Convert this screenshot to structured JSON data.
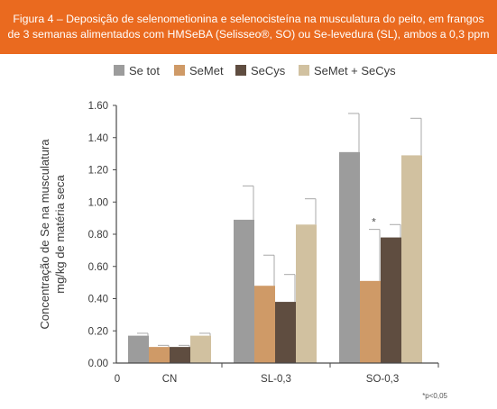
{
  "header": {
    "line1": "Figura 4 – Deposição de selenometionina e selenocisteína na musculatura do peito, em frangos",
    "line2": "de 3 semanas alimentados com HMSeBA (Selisseo®, SO) ou Se-levedura (SL), ambos a 0,3 ppm",
    "bg_color": "#ea6a1f"
  },
  "chart_data": {
    "type": "bar",
    "categories": [
      "CN",
      "SL-0,3",
      "SO-0,3"
    ],
    "series": [
      {
        "name": "Se tot",
        "color": "#9c9c9c",
        "values": [
          0.17,
          0.89,
          1.31
        ],
        "errors": [
          0.015,
          0.21,
          0.24
        ]
      },
      {
        "name": "SeMet",
        "color": "#cf9a67",
        "values": [
          0.1,
          0.48,
          0.51
        ],
        "errors": [
          0.01,
          0.19,
          0.32
        ]
      },
      {
        "name": "SeCys",
        "color": "#5f4d40",
        "values": [
          0.1,
          0.38,
          0.78
        ],
        "errors": [
          0.01,
          0.17,
          0.08
        ]
      },
      {
        "name": "SeMet + SeCys",
        "color": "#d1c1a0",
        "values": [
          0.17,
          0.86,
          1.29
        ],
        "errors": [
          0.015,
          0.16,
          0.23
        ]
      }
    ],
    "ylabel_line1": "Concentração de Se na musculatura",
    "ylabel_line2": "mg/kg de matéria seca",
    "ylim": [
      0,
      1.6
    ],
    "yticks": [
      "0.00",
      "0.20",
      "0.40",
      "0.60",
      "0.80",
      "1.00",
      "1.20",
      "1.40",
      "1.60"
    ],
    "x_origin_label": "0",
    "legend_position": "top-center",
    "annotations": [
      {
        "text": "*",
        "category": "SO-0,3",
        "series": "SeMet"
      }
    ],
    "footnote": "*p<0,05"
  }
}
